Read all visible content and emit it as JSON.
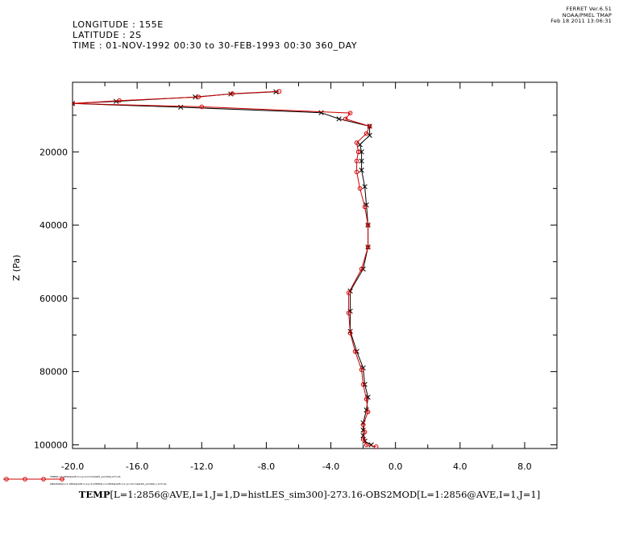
{
  "stamp": {
    "line1": "FERRET  Ver.6.51",
    "line2": "NOAA/PMEL TMAP",
    "line3": "Feb 18 2011 13:06:31"
  },
  "header": {
    "longitude": "LONGITUDE : 155E",
    "latitude": "LATITUDE : 2S",
    "time": "TIME : 01-NOV-1992 00:30 to 30-FEB-1993 00:30 360_DAY"
  },
  "caption": {
    "bold_part": "TEMP",
    "rest": "[L=1:2856@AVE,I=1,J=1,D=histLES_sim300]-273.16-OBS2MOD[L=1:2856@AVE,I=1,J=1]"
  },
  "legend": {
    "line1": "TEMP[L=1:2856@AVE,I=1,J=1,D=histLES_sim300]-273.16",
    "line2": "OBS2MOD[L=1:2856@AVE,I=1,J=1]-TEMP[L=1:2856@AVE,I=1,J=1,D=histLES_sim300] +273.16"
  },
  "colors": {
    "series_red": "#d00000",
    "series_black": "#000000",
    "axis": "#000000"
  },
  "chart_data": {
    "type": "line",
    "ylabel": "Z (Pa)",
    "xlabel": "",
    "xlim": [
      -20.0,
      10.0
    ],
    "ylim": [
      101000,
      1000
    ],
    "y_reversed": true,
    "x_tick_values": [
      -20,
      -16,
      -12,
      -8,
      -4,
      0,
      4,
      8
    ],
    "x_tick_labels": [
      "-20.0",
      "-16.0",
      "-12.0",
      "-8.0",
      "-4.0",
      "0.0",
      "4.0",
      "8.0"
    ],
    "y_tick_values": [
      20000,
      40000,
      60000,
      80000,
      100000
    ],
    "y_tick_labels": [
      "20000",
      "40000",
      "60000",
      "80000",
      "100000"
    ],
    "series": [
      {
        "color": "#000000",
        "marker": "x",
        "points": [
          {
            "x": -7.4,
            "y": 3600
          },
          {
            "x": -10.2,
            "y": 4200
          },
          {
            "x": -12.4,
            "y": 5000
          },
          {
            "x": -17.3,
            "y": 6200
          },
          {
            "x": -20.0,
            "y": 6800
          },
          {
            "x": -13.3,
            "y": 7800
          },
          {
            "x": -4.6,
            "y": 9300
          },
          {
            "x": -3.5,
            "y": 11000
          },
          {
            "x": -1.6,
            "y": 13000
          },
          {
            "x": -1.6,
            "y": 15500
          },
          {
            "x": -2.2,
            "y": 18000
          },
          {
            "x": -2.1,
            "y": 20000
          },
          {
            "x": -2.1,
            "y": 22500
          },
          {
            "x": -2.1,
            "y": 25000
          },
          {
            "x": -1.9,
            "y": 29500
          },
          {
            "x": -1.8,
            "y": 34500
          },
          {
            "x": -1.7,
            "y": 40000
          },
          {
            "x": -1.7,
            "y": 46000
          },
          {
            "x": -2.0,
            "y": 52000
          },
          {
            "x": -2.8,
            "y": 58000
          },
          {
            "x": -2.8,
            "y": 63500
          },
          {
            "x": -2.8,
            "y": 69000
          },
          {
            "x": -2.4,
            "y": 74500
          },
          {
            "x": -2.0,
            "y": 79000
          },
          {
            "x": -1.9,
            "y": 83500
          },
          {
            "x": -1.7,
            "y": 87000
          },
          {
            "x": -1.8,
            "y": 90500
          },
          {
            "x": -2.0,
            "y": 94000
          },
          {
            "x": -2.0,
            "y": 96000
          },
          {
            "x": -2.0,
            "y": 97500
          },
          {
            "x": -1.9,
            "y": 99000
          },
          {
            "x": -1.5,
            "y": 100000
          }
        ]
      },
      {
        "color": "#d00000",
        "marker": "o",
        "points": [
          {
            "x": -7.2,
            "y": 3500
          },
          {
            "x": -10.1,
            "y": 4100
          },
          {
            "x": -12.2,
            "y": 5000
          },
          {
            "x": -17.1,
            "y": 6000
          },
          {
            "x": -20.0,
            "y": 6800
          },
          {
            "x": -12.0,
            "y": 7700
          },
          {
            "x": -2.8,
            "y": 9400
          },
          {
            "x": -3.1,
            "y": 11000
          },
          {
            "x": -1.6,
            "y": 13000
          },
          {
            "x": -1.8,
            "y": 15000
          },
          {
            "x": -2.4,
            "y": 17500
          },
          {
            "x": -2.3,
            "y": 20000
          },
          {
            "x": -2.4,
            "y": 22500
          },
          {
            "x": -2.4,
            "y": 25500
          },
          {
            "x": -2.2,
            "y": 30000
          },
          {
            "x": -1.9,
            "y": 35000
          },
          {
            "x": -1.7,
            "y": 40000
          },
          {
            "x": -1.7,
            "y": 46000
          },
          {
            "x": -2.1,
            "y": 52000
          },
          {
            "x": -2.9,
            "y": 58500
          },
          {
            "x": -2.9,
            "y": 64000
          },
          {
            "x": -2.8,
            "y": 69500
          },
          {
            "x": -2.5,
            "y": 74500
          },
          {
            "x": -2.1,
            "y": 79500
          },
          {
            "x": -2.0,
            "y": 83500
          },
          {
            "x": -1.8,
            "y": 87500
          },
          {
            "x": -1.7,
            "y": 91000
          },
          {
            "x": -2.0,
            "y": 94500
          },
          {
            "x": -1.9,
            "y": 96500
          },
          {
            "x": -2.0,
            "y": 98500
          },
          {
            "x": -1.8,
            "y": 100000
          },
          {
            "x": -1.2,
            "y": 100500
          }
        ]
      }
    ],
    "grid": false,
    "legend_position": "bottom-left"
  }
}
